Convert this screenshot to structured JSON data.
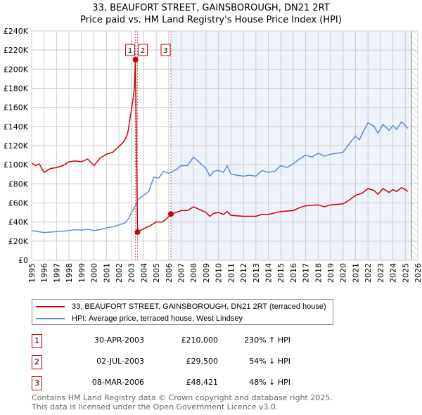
{
  "title_line1": "33, BEAUFORT STREET, GAINSBOROUGH, DN21 2RT",
  "title_line2": "Price paid vs. HM Land Registry's House Price Index (HPI)",
  "colors": {
    "property": "#cc0000",
    "hpi": "#5b8fd4",
    "shade": "#eef2fb"
  },
  "chart_data": {
    "type": "line",
    "xlim": [
      1995,
      2026
    ],
    "ylim": [
      0,
      240000
    ],
    "x_ticks": [
      "1995",
      "1996",
      "1997",
      "1998",
      "1999",
      "2000",
      "2001",
      "2002",
      "2003",
      "2004",
      "2005",
      "2006",
      "2007",
      "2008",
      "2009",
      "2010",
      "2011",
      "2012",
      "2013",
      "2014",
      "2015",
      "2016",
      "2017",
      "2018",
      "2019",
      "2020",
      "2021",
      "2022",
      "2023",
      "2024",
      "2025",
      "2026"
    ],
    "y_ticks": [
      "£0",
      "£20K",
      "£40K",
      "£60K",
      "£80K",
      "£100K",
      "£120K",
      "£140K",
      "£160K",
      "£180K",
      "£200K",
      "£220K",
      "£240K"
    ],
    "grid": true,
    "series": [
      {
        "name": "33, BEAUFORT STREET, GAINSBOROUGH, DN21 2RT (terraced house)",
        "color": "#cc0000",
        "units": "£K",
        "points": [
          [
            1995,
            102
          ],
          [
            1995.3,
            99
          ],
          [
            1995.6,
            101
          ],
          [
            1996,
            92
          ],
          [
            1996.5,
            96
          ],
          [
            1997,
            97
          ],
          [
            1997.5,
            99
          ],
          [
            1998,
            103
          ],
          [
            1998.5,
            104
          ],
          [
            1999,
            103
          ],
          [
            1999.5,
            106
          ],
          [
            2000,
            99
          ],
          [
            2000.5,
            107
          ],
          [
            2001,
            111
          ],
          [
            2001.5,
            113
          ],
          [
            2002,
            119
          ],
          [
            2002.4,
            124
          ],
          [
            2002.7,
            132
          ],
          [
            2002.9,
            148
          ],
          [
            2003.1,
            165
          ],
          [
            2003.25,
            180
          ],
          [
            2003.33,
            210
          ],
          [
            2003.5,
            29.5
          ],
          [
            2004,
            33
          ],
          [
            2004.5,
            36
          ],
          [
            2005,
            40
          ],
          [
            2005.5,
            40
          ],
          [
            2005.8,
            43
          ],
          [
            2006.18,
            48.4
          ],
          [
            2006.6,
            50
          ],
          [
            2007,
            52
          ],
          [
            2007.5,
            52
          ],
          [
            2008,
            56
          ],
          [
            2008.5,
            53
          ],
          [
            2009,
            50
          ],
          [
            2009.3,
            46
          ],
          [
            2009.6,
            49
          ],
          [
            2010,
            50
          ],
          [
            2010.4,
            48
          ],
          [
            2010.7,
            51
          ],
          [
            2011,
            47
          ],
          [
            2012,
            46
          ],
          [
            2013,
            46
          ],
          [
            2013.5,
            48
          ],
          [
            2014,
            48
          ],
          [
            2015,
            51
          ],
          [
            2016,
            52
          ],
          [
            2016.5,
            55
          ],
          [
            2017,
            57
          ],
          [
            2018,
            58
          ],
          [
            2018.5,
            56
          ],
          [
            2019,
            58
          ],
          [
            2020,
            59
          ],
          [
            2020.5,
            63
          ],
          [
            2021,
            68
          ],
          [
            2021.5,
            70
          ],
          [
            2022,
            75
          ],
          [
            2022.5,
            73
          ],
          [
            2022.8,
            69
          ],
          [
            2023.2,
            75
          ],
          [
            2023.7,
            71
          ],
          [
            2024,
            74
          ],
          [
            2024.3,
            72
          ],
          [
            2024.7,
            76
          ],
          [
            2025,
            74
          ],
          [
            2025.2,
            72
          ]
        ]
      },
      {
        "name": "HPI: Average price, terraced house, West Lindsey",
        "color": "#5b8fd4",
        "units": "£K",
        "points": [
          [
            1995,
            31
          ],
          [
            1995.5,
            30
          ],
          [
            1996,
            29
          ],
          [
            1996.5,
            29.5
          ],
          [
            1997,
            30
          ],
          [
            1997.5,
            30.5
          ],
          [
            1998,
            31
          ],
          [
            1998.5,
            32
          ],
          [
            1999,
            31.5
          ],
          [
            1999.5,
            32.5
          ],
          [
            2000,
            31
          ],
          [
            2000.5,
            32
          ],
          [
            2001,
            34
          ],
          [
            2001.5,
            35
          ],
          [
            2002,
            37
          ],
          [
            2002.5,
            39
          ],
          [
            2002.8,
            44
          ],
          [
            2003,
            50
          ],
          [
            2003.3,
            56
          ],
          [
            2003.5,
            63
          ],
          [
            2004,
            68
          ],
          [
            2004.4,
            72
          ],
          [
            2004.8,
            87
          ],
          [
            2005.2,
            86
          ],
          [
            2005.6,
            93
          ],
          [
            2006,
            91
          ],
          [
            2006.2,
            92
          ],
          [
            2006.6,
            95
          ],
          [
            2007,
            99
          ],
          [
            2007.5,
            99
          ],
          [
            2008,
            108
          ],
          [
            2008.5,
            102
          ],
          [
            2009,
            96
          ],
          [
            2009.3,
            88
          ],
          [
            2009.6,
            93
          ],
          [
            2010,
            94
          ],
          [
            2010.4,
            92
          ],
          [
            2010.7,
            99
          ],
          [
            2011,
            90
          ],
          [
            2011.5,
            89
          ],
          [
            2012,
            88
          ],
          [
            2012.5,
            89
          ],
          [
            2013,
            88
          ],
          [
            2013.5,
            94
          ],
          [
            2014,
            92
          ],
          [
            2014.5,
            93
          ],
          [
            2015,
            99
          ],
          [
            2015.5,
            97
          ],
          [
            2016,
            101
          ],
          [
            2016.5,
            106
          ],
          [
            2017,
            110
          ],
          [
            2017.5,
            108
          ],
          [
            2018,
            112
          ],
          [
            2018.5,
            109
          ],
          [
            2019,
            111
          ],
          [
            2019.5,
            112
          ],
          [
            2020,
            113
          ],
          [
            2020.5,
            122
          ],
          [
            2021,
            130
          ],
          [
            2021.3,
            126
          ],
          [
            2021.6,
            134
          ],
          [
            2022,
            144
          ],
          [
            2022.5,
            140
          ],
          [
            2022.8,
            133
          ],
          [
            2023.2,
            142
          ],
          [
            2023.7,
            136
          ],
          [
            2024,
            141
          ],
          [
            2024.3,
            137
          ],
          [
            2024.7,
            145
          ],
          [
            2025,
            141
          ],
          [
            2025.2,
            138
          ]
        ]
      }
    ],
    "sales": [
      {
        "label": "1",
        "x": 2003.33,
        "y": 210
      },
      {
        "label": "2",
        "x": 2003.5,
        "y": 29.5
      },
      {
        "label": "3",
        "x": 2006.18,
        "y": 48.421
      }
    ],
    "shaded_from": 2006.18,
    "hatched_from": 2025.5,
    "legend_position": "below"
  },
  "legend": [
    "33, BEAUFORT STREET, GAINSBOROUGH, DN21 2RT (terraced house)",
    "HPI: Average price, terraced house, West Lindsey"
  ],
  "transactions": [
    {
      "n": "1",
      "date": "30-APR-2003",
      "price": "£210,000",
      "hpi": "230% ↑ HPI"
    },
    {
      "n": "2",
      "date": "02-JUL-2003",
      "price": "£29,500",
      "hpi": "54% ↓ HPI"
    },
    {
      "n": "3",
      "date": "08-MAR-2006",
      "price": "£48,421",
      "hpi": "48% ↓ HPI"
    }
  ],
  "footer1": "Contains HM Land Registry data © Crown copyright and database right 2025.",
  "footer2": "This data is licensed under the Open Government Licence v3.0."
}
